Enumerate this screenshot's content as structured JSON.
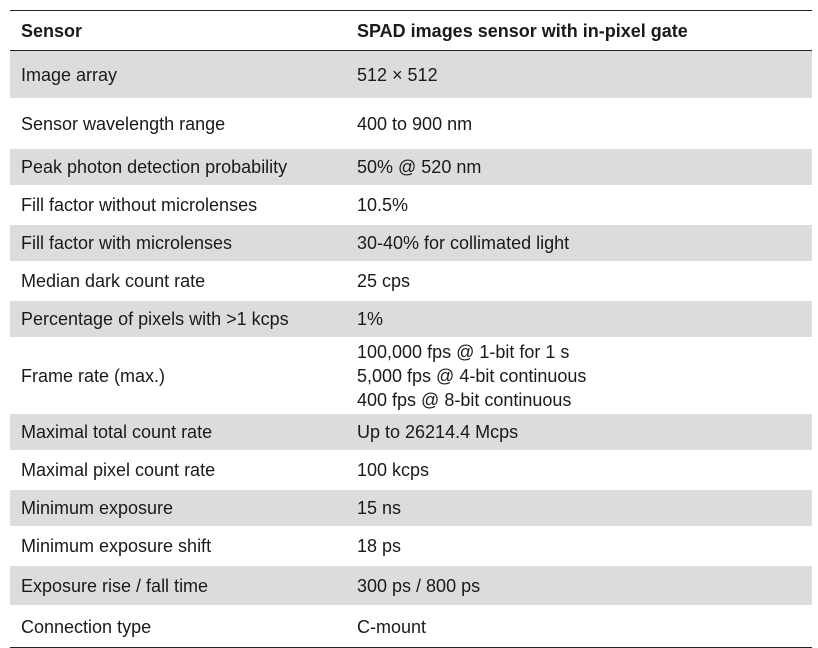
{
  "header": {
    "col1": "Sensor",
    "col2": "SPAD images sensor with in-pixel gate"
  },
  "rows": [
    {
      "param": "Image array",
      "value": [
        "512 × 512"
      ],
      "shaded": true
    },
    {
      "param": "Sensor wavelength range",
      "value": [
        "400 to 900 nm"
      ],
      "shaded": false
    },
    {
      "param": "Peak photon detection probability",
      "value": [
        "50% @ 520 nm"
      ],
      "shaded": true
    },
    {
      "param": "Fill factor without microlenses",
      "value": [
        "10.5%"
      ],
      "shaded": false
    },
    {
      "param": "Fill factor with microlenses",
      "value": [
        "30-40% for collimated light"
      ],
      "shaded": true
    },
    {
      "param": "Median dark count rate",
      "value": [
        "25 cps"
      ],
      "shaded": false
    },
    {
      "param": "Percentage of pixels with >1 kcps",
      "value": [
        "1%"
      ],
      "shaded": true
    },
    {
      "param": "Frame rate (max.)",
      "value": [
        "100,000 fps @ 1-bit for 1 s",
        "5,000 fps @ 4-bit continuous",
        "400 fps @ 8-bit continuous"
      ],
      "shaded": false
    },
    {
      "param": "Maximal total count rate",
      "value": [
        "Up to 26214.4 Mcps"
      ],
      "shaded": true
    },
    {
      "param": "Maximal pixel count rate",
      "value": [
        "100 kcps"
      ],
      "shaded": false
    },
    {
      "param": "Minimum exposure",
      "value": [
        "15 ns"
      ],
      "shaded": true
    },
    {
      "param": "Minimum exposure shift",
      "value": [
        "18 ps"
      ],
      "shaded": false
    },
    {
      "param": "Exposure rise / fall time",
      "value": [
        "300 ps / 800 ps"
      ],
      "shaded": true
    },
    {
      "param": "Connection type",
      "value": [
        "C-mount"
      ],
      "shaded": false
    }
  ]
}
